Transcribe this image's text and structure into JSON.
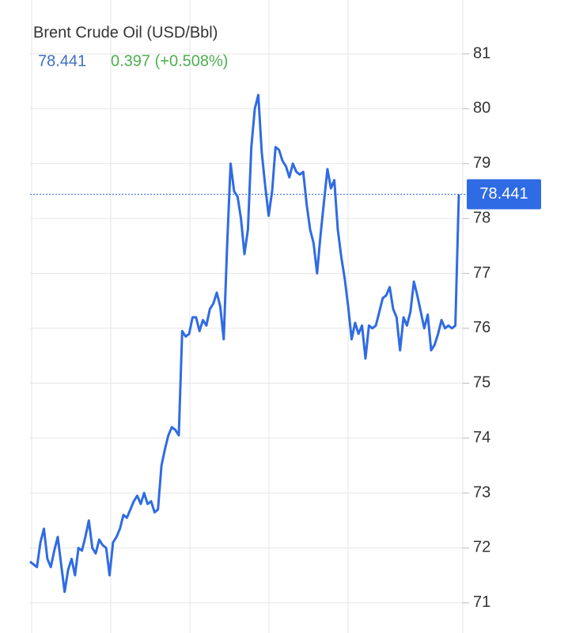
{
  "chart_data": {
    "type": "line",
    "title": "Brent Crude Oil (USD/Bbl)",
    "last_price": 78.441,
    "change": "0.397 (+0.508%)",
    "color": "#2f6be3",
    "grid": true,
    "ylim": [
      70.45,
      81.98
    ],
    "yticks": [
      71,
      72,
      73,
      74,
      75,
      76,
      77,
      78,
      79,
      80,
      81
    ],
    "values": [
      71.75,
      71.7,
      71.65,
      72.1,
      72.35,
      71.8,
      71.65,
      71.95,
      72.2,
      71.7,
      71.2,
      71.6,
      71.8,
      71.5,
      72.0,
      71.95,
      72.2,
      72.5,
      72.0,
      71.9,
      72.15,
      72.05,
      72.0,
      71.5,
      72.1,
      72.2,
      72.35,
      72.6,
      72.55,
      72.7,
      72.85,
      72.95,
      72.8,
      73.0,
      72.8,
      72.85,
      72.65,
      72.7,
      73.5,
      73.8,
      74.05,
      74.2,
      74.15,
      74.05,
      75.95,
      75.85,
      75.9,
      76.2,
      76.2,
      75.95,
      76.15,
      76.05,
      76.35,
      76.45,
      76.65,
      76.4,
      75.8,
      77.5,
      79.0,
      78.5,
      78.4,
      78.0,
      77.35,
      77.8,
      79.3,
      80.0,
      80.25,
      79.2,
      78.6,
      78.05,
      78.5,
      79.3,
      79.25,
      79.05,
      78.95,
      78.75,
      79.0,
      78.85,
      78.8,
      78.85,
      78.25,
      77.8,
      77.55,
      77.0,
      77.7,
      78.3,
      78.9,
      78.55,
      78.7,
      77.8,
      77.3,
      76.9,
      76.4,
      75.8,
      76.1,
      75.9,
      76.05,
      75.45,
      76.05,
      76.0,
      76.05,
      76.3,
      76.55,
      76.6,
      76.75,
      76.35,
      76.2,
      75.6,
      76.2,
      76.05,
      76.3,
      76.85,
      76.6,
      76.3,
      76.0,
      76.25,
      75.6,
      75.7,
      75.9,
      76.15,
      76.0,
      76.05,
      76.0,
      76.05,
      78.441
    ]
  }
}
